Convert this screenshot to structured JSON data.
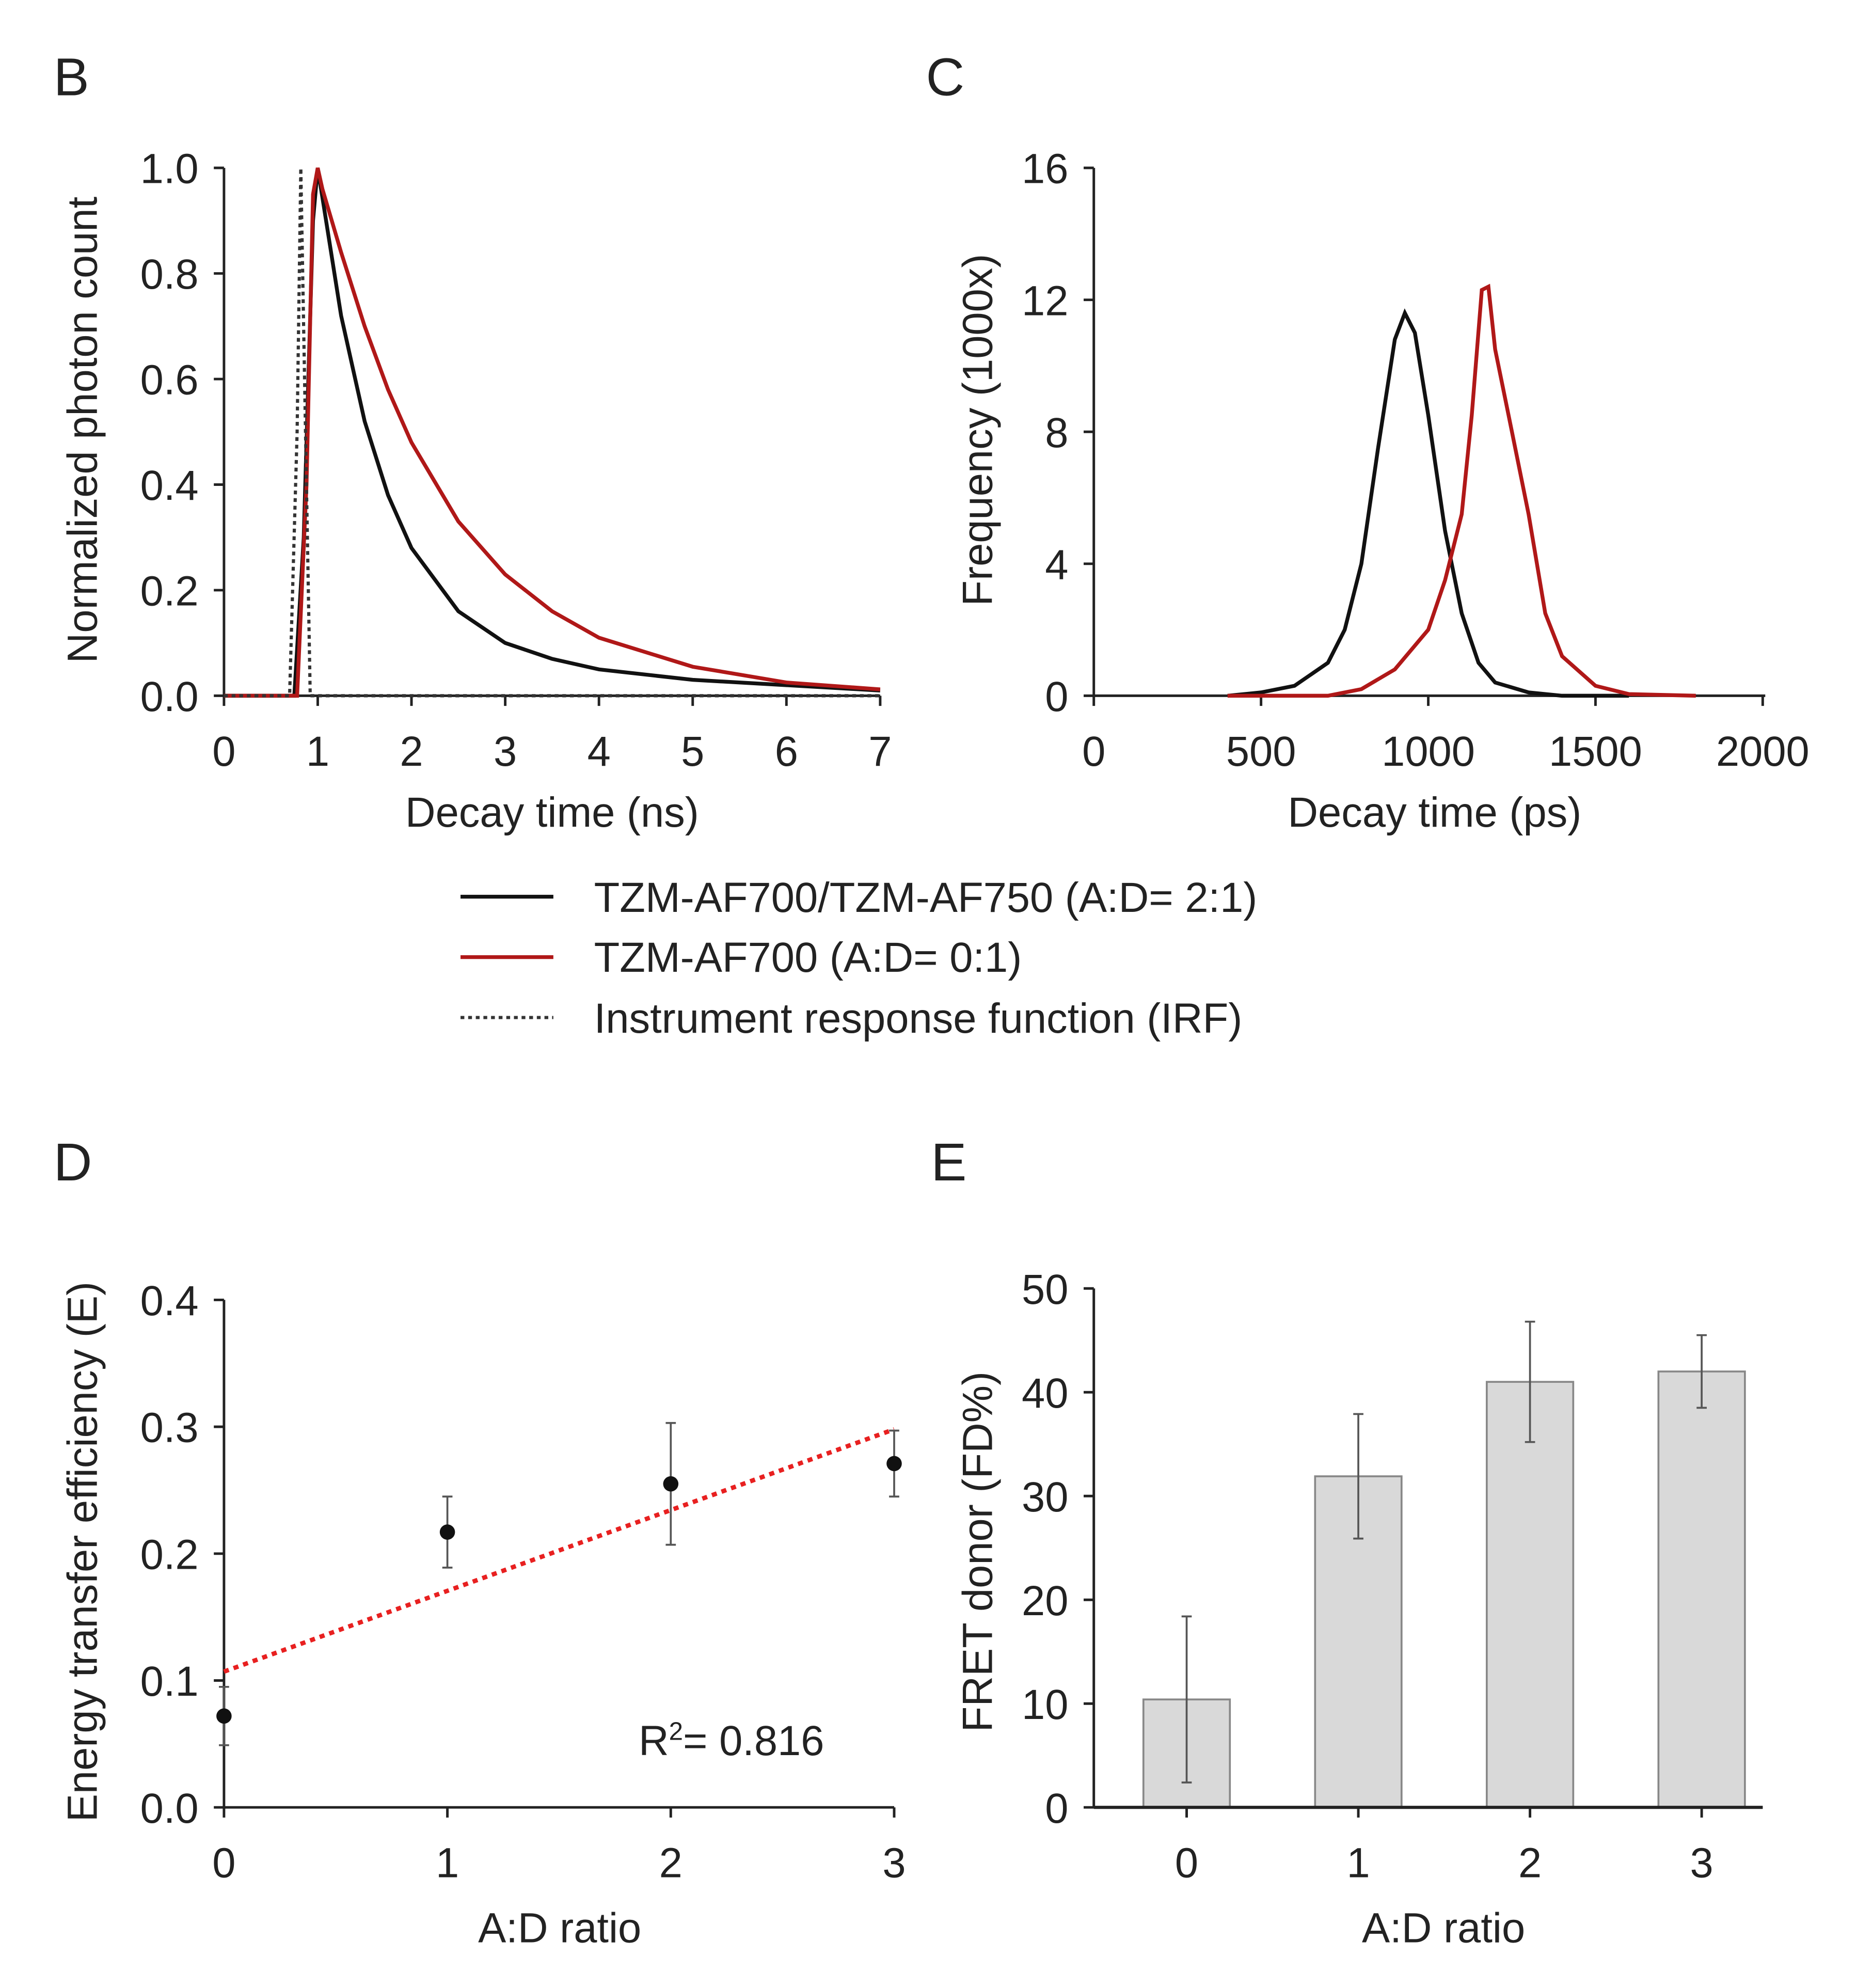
{
  "chart_data": [
    {
      "panel": "B",
      "type": "line",
      "xlabel": "Decay time (ns)",
      "ylabel": "Normalized photon count",
      "xlim": [
        0,
        7
      ],
      "ylim": [
        0,
        1.0
      ],
      "xticks": [
        "0",
        "1",
        "2",
        "3",
        "4",
        "5",
        "6",
        "7"
      ],
      "yticks": [
        "0.0",
        "0.2",
        "0.4",
        "0.6",
        "0.8",
        "1.0"
      ],
      "series": [
        {
          "name": "TZM-AF700/TZM-AF750 (A:D= 2:1)",
          "color": "#111111",
          "style": "solid",
          "x": [
            0,
            0.75,
            0.85,
            0.95,
            1.0,
            1.25,
            1.5,
            1.75,
            2,
            2.5,
            3,
            3.5,
            4,
            5,
            6,
            7
          ],
          "y": [
            0,
            0,
            0.3,
            0.9,
            1.0,
            0.72,
            0.52,
            0.38,
            0.28,
            0.16,
            0.1,
            0.07,
            0.05,
            0.03,
            0.02,
            0.01
          ]
        },
        {
          "name": "TZM-AF700 (A:D= 0:1)",
          "color": "#b01818",
          "style": "solid",
          "x": [
            0,
            0.78,
            0.88,
            0.95,
            1.0,
            1.05,
            1.25,
            1.5,
            1.75,
            2,
            2.5,
            3,
            3.5,
            4,
            5,
            6,
            7
          ],
          "y": [
            0,
            0,
            0.4,
            0.95,
            1.0,
            0.96,
            0.84,
            0.7,
            0.58,
            0.48,
            0.33,
            0.23,
            0.16,
            0.11,
            0.055,
            0.025,
            0.012
          ]
        },
        {
          "name": "Instrument response function (IRF)",
          "color": "#333333",
          "style": "dotted",
          "x": [
            0,
            0.7,
            0.78,
            0.82,
            0.87,
            0.92,
            7
          ],
          "y": [
            0,
            0,
            0.5,
            1.0,
            0.5,
            0,
            0
          ]
        }
      ]
    },
    {
      "panel": "C",
      "type": "line",
      "xlabel": "Decay time (ps)",
      "ylabel": "Frequency (1000x)",
      "xlim": [
        0,
        2000
      ],
      "ylim": [
        0,
        16
      ],
      "xticks": [
        "0",
        "500",
        "1000",
        "1500",
        "2000"
      ],
      "yticks": [
        "0",
        "4",
        "8",
        "12",
        "16"
      ],
      "series": [
        {
          "name": "TZM-AF700/TZM-AF750 (A:D= 2:1)",
          "color": "#111111",
          "x": [
            400,
            500,
            600,
            700,
            750,
            800,
            850,
            900,
            930,
            960,
            1000,
            1050,
            1100,
            1150,
            1200,
            1300,
            1400,
            1600
          ],
          "y": [
            0,
            0.1,
            0.3,
            1.0,
            2.0,
            4.0,
            7.5,
            10.8,
            11.6,
            11.0,
            8.5,
            5,
            2.5,
            1.0,
            0.4,
            0.1,
            0,
            0
          ]
        },
        {
          "name": "TZM-AF700 (A:D= 0:1)",
          "color": "#b01818",
          "x": [
            400,
            700,
            800,
            900,
            1000,
            1050,
            1100,
            1130,
            1160,
            1180,
            1200,
            1250,
            1300,
            1350,
            1400,
            1500,
            1600,
            1800
          ],
          "y": [
            0,
            0,
            0.2,
            0.8,
            2.0,
            3.5,
            5.5,
            8.5,
            12.3,
            12.4,
            10.5,
            8,
            5.5,
            2.5,
            1.2,
            0.3,
            0.05,
            0
          ]
        }
      ]
    },
    {
      "panel": "D",
      "type": "scatter",
      "xlabel": "A:D ratio",
      "ylabel": "Energy transfer efficiency (E)",
      "xlim": [
        0,
        3
      ],
      "ylim": [
        0,
        0.4
      ],
      "xticks": [
        "0",
        "1",
        "2",
        "3"
      ],
      "yticks": [
        "0.0",
        "0.1",
        "0.2",
        "0.3",
        "0.4"
      ],
      "x": [
        0,
        1,
        2,
        3
      ],
      "y": [
        0.072,
        0.217,
        0.255,
        0.271
      ],
      "err": [
        0.023,
        0.028,
        0.048,
        0.026
      ],
      "fit": {
        "x": [
          0,
          3
        ],
        "y": [
          0.107,
          0.298
        ],
        "color": "#e82020",
        "style": "dotted"
      },
      "annotation": {
        "r2_label": "R",
        "r2_sup": "2",
        "r2_text": "= 0.816"
      }
    },
    {
      "panel": "E",
      "type": "bar",
      "xlabel": "A:D ratio",
      "ylabel": "FRET donor (FD%)",
      "ylim": [
        0,
        50
      ],
      "categories": [
        "0",
        "1",
        "2",
        "3"
      ],
      "values": [
        10.4,
        31.9,
        41.0,
        42.0
      ],
      "err": [
        8.0,
        6.0,
        5.8,
        3.5
      ],
      "yticks": [
        "0",
        "10",
        "20",
        "30",
        "40",
        "50"
      ],
      "bar_color": "#d9d9d9"
    }
  ],
  "legend": {
    "items": [
      {
        "label": "TZM-AF700/TZM-AF750 (A:D= 2:1)",
        "color": "#111111",
        "style": "solid"
      },
      {
        "label": "TZM-AF700 (A:D= 0:1)",
        "color": "#b01818",
        "style": "solid"
      },
      {
        "label": "Instrument response function (IRF)",
        "color": "#333333",
        "style": "dotted"
      }
    ]
  },
  "panel_labels": [
    "B",
    "C",
    "D",
    "E"
  ]
}
